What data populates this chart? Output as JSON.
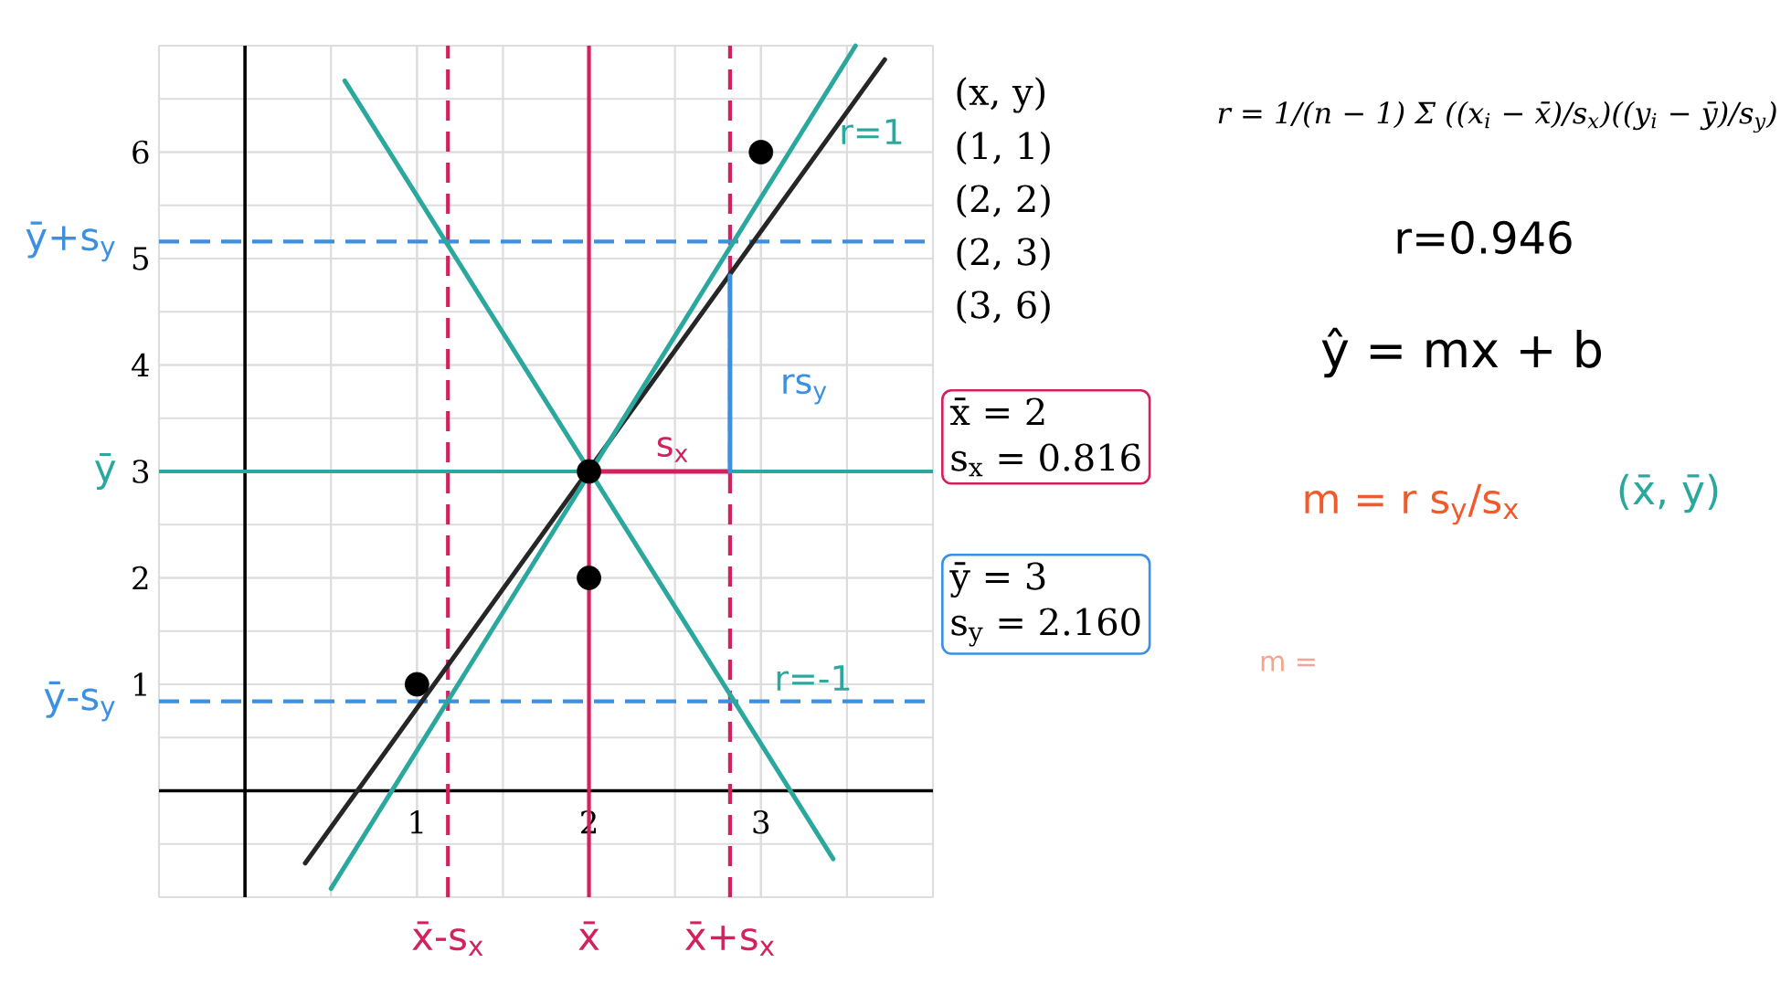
{
  "chart_data": {
    "type": "scatter",
    "xlim": [
      -0.5,
      4
    ],
    "ylim": [
      -1,
      7
    ],
    "xticks": [
      1,
      2,
      3
    ],
    "yticks": [
      1,
      2,
      3,
      4,
      5,
      6
    ],
    "grid": true,
    "marker": "circle",
    "series": [
      {
        "type": "line",
        "color": "#262626",
        "marker": "none",
        "x": [
          0.35,
          3.72
        ],
        "values": [
          -0.68,
          6.87
        ]
      },
      {
        "type": "line",
        "color": "#2ba89d",
        "marker": "none",
        "x": [
          0.5,
          3.55
        ],
        "values": [
          -0.92,
          7
        ]
      },
      {
        "type": "line",
        "color": "#2ba89d",
        "marker": "none",
        "x": [
          0.58,
          3.42
        ],
        "values": [
          6.67,
          -0.64
        ]
      },
      {
        "type": "line",
        "color": "#d2215f",
        "marker": "none",
        "x": [
          2,
          2.82
        ],
        "values": [
          3,
          3
        ]
      },
      {
        "type": "line",
        "color": "#3d8fe0",
        "marker": "none",
        "x": [
          2.82,
          2.82
        ],
        "values": [
          3,
          4.84
        ]
      },
      {
        "color": "#000000",
        "x": [
          1,
          2,
          2,
          3
        ],
        "values": [
          1,
          2,
          3,
          6
        ]
      }
    ],
    "ref_lines": [
      {
        "axis": "x",
        "value": 1.18,
        "label": "x̄-s$_{x}$",
        "color": "#d2215f",
        "line_style": "dashed"
      },
      {
        "axis": "x",
        "value": 2,
        "label": "x̄",
        "color": "#d2215f",
        "line_style": "solid"
      },
      {
        "axis": "x",
        "value": 2.82,
        "label": "x̄+s$_{x}$",
        "color": "#d2215f",
        "line_style": "dashed"
      },
      {
        "axis": "y",
        "value": 5.16,
        "label": "ȳ+s$_{y}$",
        "color": "#3d8fe0",
        "line_style": "dashed"
      },
      {
        "axis": "y",
        "value": 3,
        "label": "ȳ",
        "color": "#2ba89d",
        "line_style": "solid"
      },
      {
        "axis": "y",
        "value": 0.84,
        "label": "ȳ-s$_{y}$",
        "color": "#3d8fe0",
        "line_style": "dashed"
      }
    ],
    "annotations": [
      "(x, y)",
      "(1, 1)",
      "(2, 2)",
      "(2, 3)",
      "(3, 6)",
      "r = 1/(n − 1) Σ ((x$_{i}$ − x̄)/s$_{x}$)((y$_{i}$ − ȳ)/s$_{y}$)",
      "r=0.946",
      "ŷ = mx + b",
      "x̄ = 2",
      "s$_{x}$ = 0.816",
      "ȳ = 3",
      "s$_{y}$ = 2.160",
      "m = r s$_{y}$/s$_{x}$",
      "(x̄, ȳ)",
      "m =",
      "r=1",
      "r=-1",
      "s$_{x}$",
      "rs$_{y}$"
    ]
  }
}
